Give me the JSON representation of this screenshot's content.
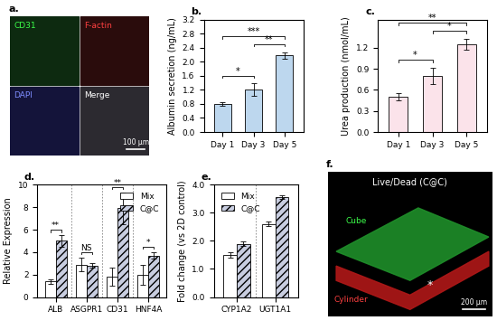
{
  "chart_data": [
    {
      "type": "image",
      "title": "a.",
      "annotations": [
        "CD31",
        "F-actin",
        "DAPI",
        "Merge",
        "100 μm"
      ]
    },
    {
      "type": "bar",
      "title": "b.",
      "y_label": "Albumin secretion (ng/mL)",
      "categories": [
        "Day 1",
        "Day 3",
        "Day 5"
      ],
      "values": [
        0.8,
        1.2,
        2.18
      ],
      "errors": [
        0.06,
        0.18,
        0.1
      ],
      "color": "#bdd7ee",
      "ylim": [
        0,
        3.2
      ],
      "yticks": [
        {
          "value": 0.0,
          "label": "0.0"
        },
        {
          "value": 0.4,
          "label": "0.4"
        },
        {
          "value": 0.8,
          "label": "0.8"
        },
        {
          "value": 1.2,
          "label": "1.2"
        },
        {
          "value": 1.6,
          "label": "1.6"
        },
        {
          "value": 2.0,
          "label": "2.0"
        },
        {
          "value": 2.4,
          "label": "2.4"
        },
        {
          "value": 2.8,
          "label": "2.8"
        },
        {
          "value": 3.2,
          "label": "3.2"
        }
      ],
      "significance": [
        {
          "between": [
            "Day 1",
            "Day 3"
          ],
          "label": "*"
        },
        {
          "between": [
            "Day 3",
            "Day 5"
          ],
          "label": "**"
        },
        {
          "between": [
            "Day 1",
            "Day 5"
          ],
          "label": "***"
        }
      ]
    },
    {
      "type": "bar",
      "title": "c.",
      "y_label": "Urea production (nmol/mL)",
      "categories": [
        "Day 1",
        "Day 3",
        "Day 5"
      ],
      "values": [
        0.5,
        0.8,
        1.25
      ],
      "errors": [
        0.05,
        0.12,
        0.08
      ],
      "color": "#fbe3ea",
      "ylim": [
        0,
        1.6
      ],
      "yticks": [
        {
          "value": 0.0,
          "label": "0.0"
        },
        {
          "value": 0.3,
          "label": "0.3"
        },
        {
          "value": 0.6,
          "label": "0.6"
        },
        {
          "value": 0.9,
          "label": "0.9"
        },
        {
          "value": 1.2,
          "label": "1.2"
        }
      ],
      "significance": [
        {
          "between": [
            "Day 1",
            "Day 3"
          ],
          "label": "*"
        },
        {
          "between": [
            "Day 3",
            "Day 5"
          ],
          "label": "*"
        },
        {
          "between": [
            "Day 1",
            "Day 5"
          ],
          "label": "**"
        }
      ]
    },
    {
      "type": "bar",
      "title": "d.",
      "y_label": "Relative Expression",
      "categories": [
        "ALB",
        "ASGPR1",
        "CD31",
        "HNF4A"
      ],
      "series": [
        {
          "name": "Mix",
          "color": "#ffffff",
          "values": [
            1.4,
            2.9,
            1.8,
            2.0
          ],
          "errors": [
            0.2,
            0.6,
            0.8,
            0.9
          ]
        },
        {
          "name": "C@C",
          "color": "#c8cde0",
          "values": [
            5.0,
            2.8,
            7.9,
            3.7
          ],
          "errors": [
            0.5,
            0.2,
            1.4,
            0.3
          ]
        }
      ],
      "ylim": [
        0,
        10
      ],
      "yticks": [
        0,
        2,
        4,
        6,
        8,
        10
      ],
      "legend": "upper right",
      "significance": [
        "**",
        "NS",
        "**",
        "*"
      ]
    },
    {
      "type": "bar",
      "title": "e.",
      "y_label": "Fold change (vs 2D control)",
      "categories": [
        "CYP1A2",
        "UGT1A1"
      ],
      "series": [
        {
          "name": "Mix",
          "color": "#ffffff",
          "values": [
            1.5,
            2.6
          ],
          "errors": [
            0.1,
            0.08
          ]
        },
        {
          "name": "C@C",
          "color": "#c8cde0",
          "values": [
            1.9,
            3.55
          ],
          "errors": [
            0.07,
            0.06
          ]
        }
      ],
      "ylim": [
        0,
        4
      ],
      "yticks": [
        {
          "value": 0.0,
          "label": "0.0"
        },
        {
          "value": 1.0,
          "label": "1.0"
        },
        {
          "value": 2.0,
          "label": "2.0"
        },
        {
          "value": 3.0,
          "label": "3.0"
        },
        {
          "value": 4.0,
          "label": "4.0"
        }
      ],
      "legend": "upper left"
    },
    {
      "type": "image",
      "title": "f.",
      "annotations": [
        "Live/Dead (C@C)",
        "Cube",
        "Cylinder",
        "*",
        "200 μm"
      ]
    }
  ]
}
